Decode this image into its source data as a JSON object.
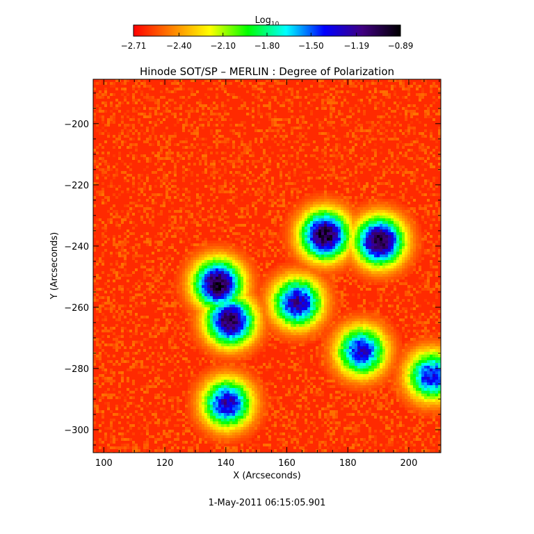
{
  "chart_data": {
    "type": "heatmap",
    "title": "Hinode SOT/SP – MERLIN : Degree of Polarization",
    "xlabel": "X (Arcseconds)",
    "ylabel": "Y (Arcseconds)",
    "xlim": [
      96.5,
      210.5
    ],
    "ylim": [
      -307.5,
      -185.5
    ],
    "x_ticks": [
      100,
      120,
      140,
      160,
      180,
      200
    ],
    "x_tick_labels": [
      "100",
      "120",
      "140",
      "160",
      "180",
      "200"
    ],
    "y_ticks": [
      -200,
      -220,
      -240,
      -260,
      -280,
      -300
    ],
    "y_tick_labels": [
      "−200",
      "−220",
      "−240",
      "−260",
      "−280",
      "−300"
    ],
    "colorbar": {
      "label": "Log",
      "label_subscript": "10",
      "range": [
        -2.71,
        -0.89
      ],
      "ticks": [
        -2.71,
        -2.4,
        -2.1,
        -1.8,
        -1.5,
        -1.19,
        -0.89
      ],
      "tick_labels": [
        "−2.71",
        "−2.40",
        "−2.10",
        "−1.80",
        "−1.50",
        "−1.19",
        "−0.89"
      ],
      "colormap": [
        "#ff0000",
        "#ff8000",
        "#ffff00",
        "#00ff00",
        "#00ffff",
        "#0000ff",
        "#400080",
        "#000000"
      ]
    },
    "timestamp": "1-May-2011 06:15:05.901",
    "background_level": -2.65,
    "strong_regions": [
      {
        "x": 137,
        "y": -252,
        "peak": -0.95
      },
      {
        "x": 141,
        "y": -264,
        "peak": -1.0
      },
      {
        "x": 172,
        "y": -236,
        "peak": -0.95
      },
      {
        "x": 190,
        "y": -238,
        "peak": -0.95
      },
      {
        "x": 163,
        "y": -258,
        "peak": -1.2
      },
      {
        "x": 140,
        "y": -291,
        "peak": -1.25
      },
      {
        "x": 184,
        "y": -274,
        "peak": -1.3
      },
      {
        "x": 207,
        "y": -282,
        "peak": -1.35
      }
    ]
  }
}
